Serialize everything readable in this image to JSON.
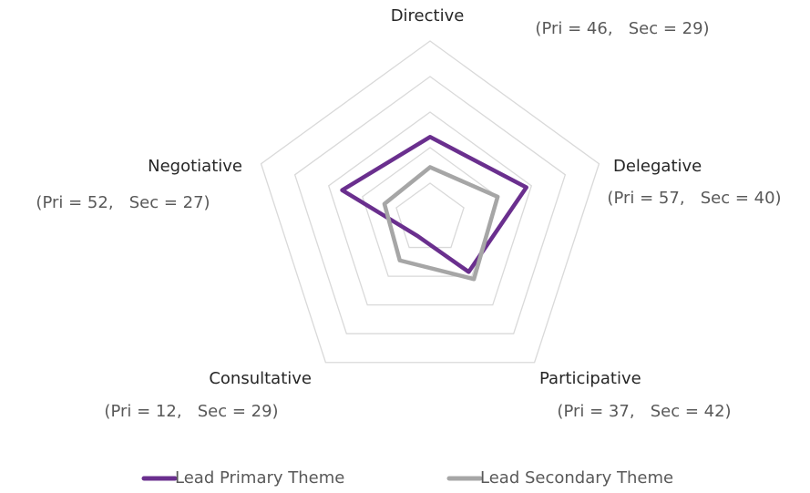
{
  "chart_data": {
    "type": "radar",
    "categories": [
      "Directive",
      "Delegative",
      "Participative",
      "Consultative",
      "Negotiative"
    ],
    "annotations": [
      "(Pri = 46,   Sec = 29)",
      "(Pri = 57,   Sec = 40)",
      "(Pri = 37,   Sec = 42)",
      "(Pri = 12,   Sec = 29)",
      "(Pri = 52,   Sec = 27)"
    ],
    "series": [
      {
        "name": "Lead Primary Theme",
        "color": "#6a2f8e",
        "values": [
          46,
          57,
          37,
          12,
          52
        ]
      },
      {
        "name": "Lead Secondary Theme",
        "color": "#a6a6a6",
        "values": [
          29,
          40,
          42,
          29,
          27
        ]
      }
    ],
    "ylim": [
      0,
      100
    ],
    "yticks": [
      0,
      20,
      40,
      60,
      80,
      100
    ],
    "grid": true,
    "legend": "bottom"
  }
}
